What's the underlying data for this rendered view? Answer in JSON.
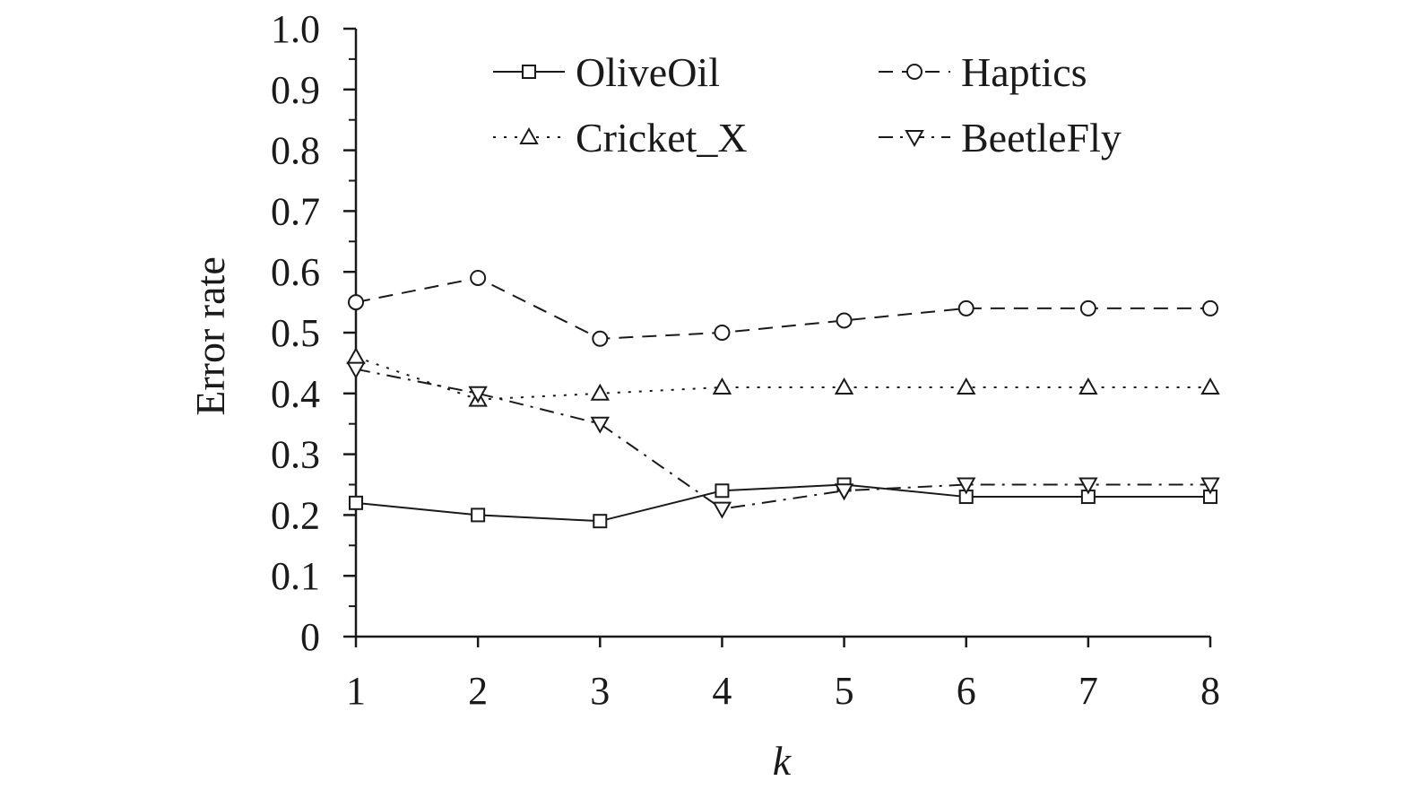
{
  "chart_data": {
    "type": "line",
    "xlabel": "k",
    "ylabel": "Error rate",
    "x": [
      1,
      2,
      3,
      4,
      5,
      6,
      7,
      8
    ],
    "xlim": [
      1,
      8
    ],
    "ylim": [
      0,
      1.0
    ],
    "yticks": [
      "0",
      "0.1",
      "0.2",
      "0.3",
      "0.4",
      "0.5",
      "0.6",
      "0.7",
      "0.8",
      "0.9",
      "1.0"
    ],
    "xticks": [
      "1",
      "2",
      "3",
      "4",
      "5",
      "6",
      "7",
      "8"
    ],
    "grid": false,
    "legend_position": "top",
    "series": [
      {
        "name": "OliveOil",
        "marker": "square",
        "line": "solid",
        "values": [
          0.22,
          0.2,
          0.19,
          0.24,
          0.25,
          0.23,
          0.23,
          0.23
        ]
      },
      {
        "name": "Haptics",
        "marker": "circle",
        "line": "dashed",
        "values": [
          0.55,
          0.59,
          0.49,
          0.5,
          0.52,
          0.54,
          0.54,
          0.54
        ]
      },
      {
        "name": "Cricket_X",
        "marker": "triangle-up",
        "line": "dotted",
        "values": [
          0.46,
          0.39,
          0.4,
          0.41,
          0.41,
          0.41,
          0.41,
          0.41
        ]
      },
      {
        "name": "BeetleFly",
        "marker": "triangle-down",
        "line": "dash-dot",
        "values": [
          0.44,
          0.4,
          0.35,
          0.21,
          0.24,
          0.25,
          0.25,
          0.25
        ]
      }
    ]
  }
}
